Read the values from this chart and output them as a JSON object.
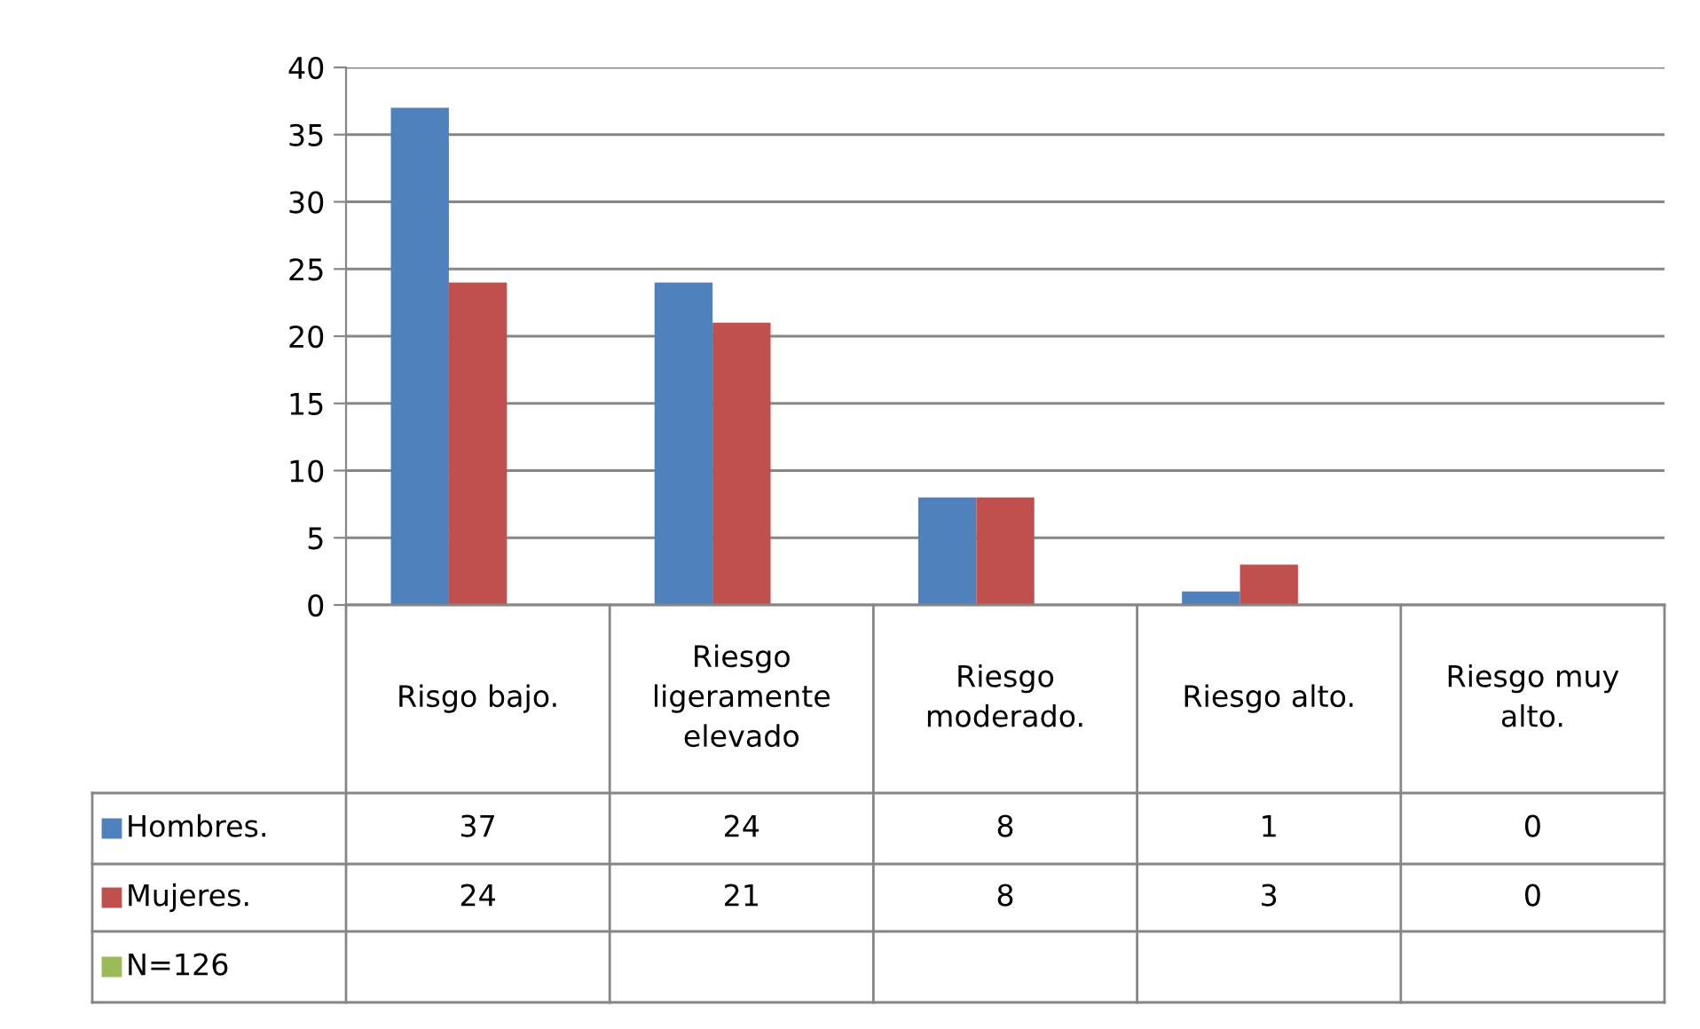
{
  "chart_data": {
    "type": "bar",
    "categories": [
      "Risgo bajo.",
      "Riesgo ligeramente elevado",
      "Riesgo moderado.",
      "Riesgo alto.",
      "Riesgo muy alto."
    ],
    "series": [
      {
        "name": "Hombres.",
        "color": "#4f81bd",
        "values": [
          37,
          24,
          8,
          1,
          0
        ]
      },
      {
        "name": "Mujeres.",
        "color": "#c0504d",
        "values": [
          24,
          21,
          8,
          3,
          0
        ]
      },
      {
        "name": "N=126",
        "color": "#9bbb59",
        "values": [
          null,
          null,
          null,
          null,
          null
        ]
      }
    ],
    "ylim": [
      0,
      40
    ],
    "yticks": [
      0,
      5,
      10,
      15,
      20,
      25,
      30,
      35,
      40
    ],
    "grid": "y",
    "legend": "bottom left",
    "data_labels": true
  }
}
